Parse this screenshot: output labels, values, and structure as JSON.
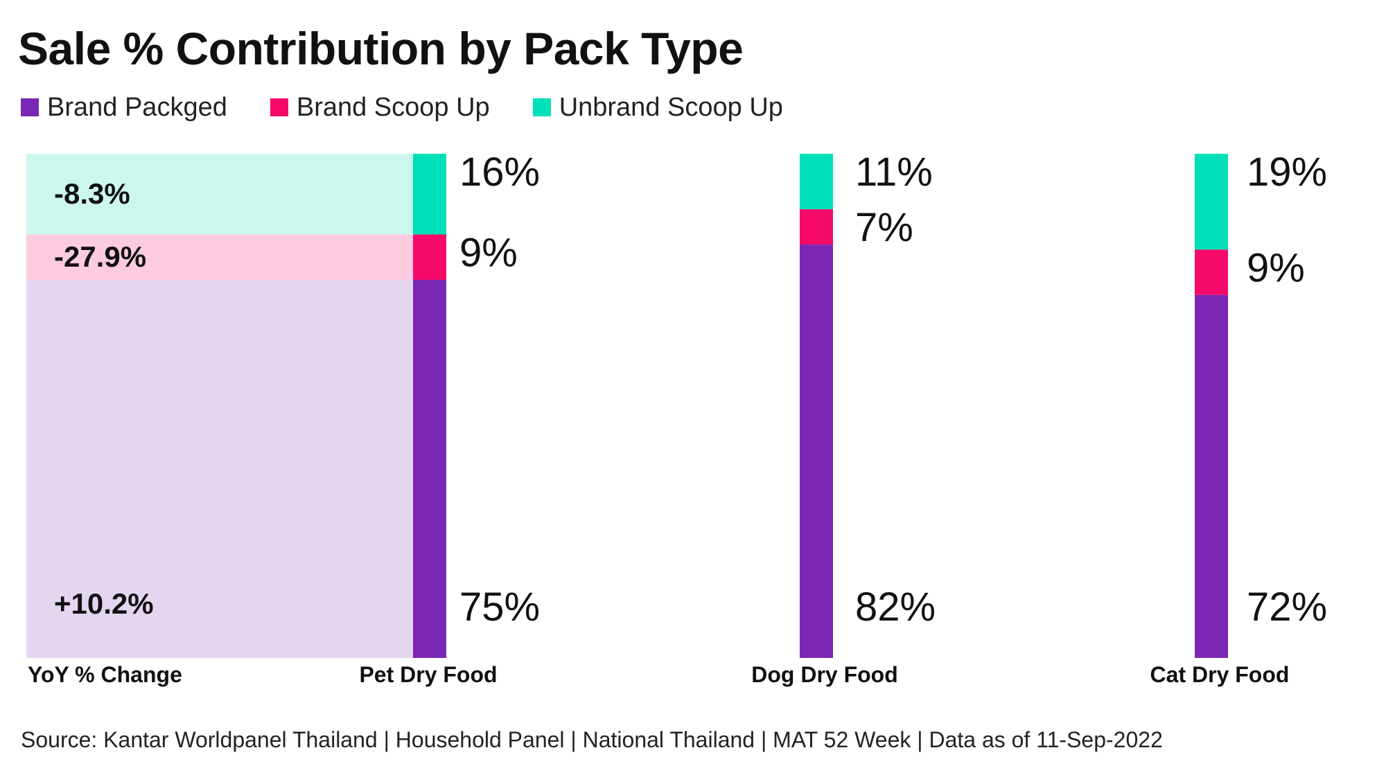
{
  "title": "Sale % Contribution by Pack Type",
  "source": "Source: Kantar Worldpanel Thailand | Household Panel | National Thailand | MAT 52 Week | Data as of 11-Sep-2022",
  "colors": {
    "brand_packged": "#7B27B5",
    "brand_scoop_up": "#F50A6A",
    "unbrand_scoop_up": "#00E0B8",
    "yoy_brand_packged_bg": "#E4D5F1",
    "yoy_brand_scoop_up_bg": "#FDCBE0",
    "yoy_unbrand_scoop_up_bg": "#CCF7EE"
  },
  "legend": [
    {
      "label": "Brand Packged",
      "color": "#7B27B5"
    },
    {
      "label": "Brand Scoop Up",
      "color": "#F50A6A"
    },
    {
      "label": "Unbrand Scoop Up",
      "color": "#00E0B8"
    }
  ],
  "chart_data": {
    "type": "bar",
    "stacked": true,
    "title": "Sale % Contribution by Pack Type",
    "categories": [
      "Pet Dry Food",
      "Dog Dry Food",
      "Cat Dry Food"
    ],
    "series": [
      {
        "name": "Brand Packged",
        "values": [
          75,
          82,
          72
        ],
        "labels": [
          "75%",
          "82%",
          "72%"
        ]
      },
      {
        "name": "Brand Scoop Up",
        "values": [
          9,
          7,
          9
        ],
        "labels": [
          "9%",
          "7%",
          "9%"
        ]
      },
      {
        "name": "Unbrand Scoop Up",
        "values": [
          16,
          11,
          19
        ],
        "labels": [
          "16%",
          "11%",
          "19%"
        ]
      }
    ],
    "yoy_change": {
      "label": "YoY % Change",
      "values": {
        "Brand Packged": "+10.2%",
        "Brand Scoop Up": "-27.9%",
        "Unbrand Scoop Up": "-8.3%"
      }
    },
    "ylim": [
      0,
      100
    ]
  }
}
